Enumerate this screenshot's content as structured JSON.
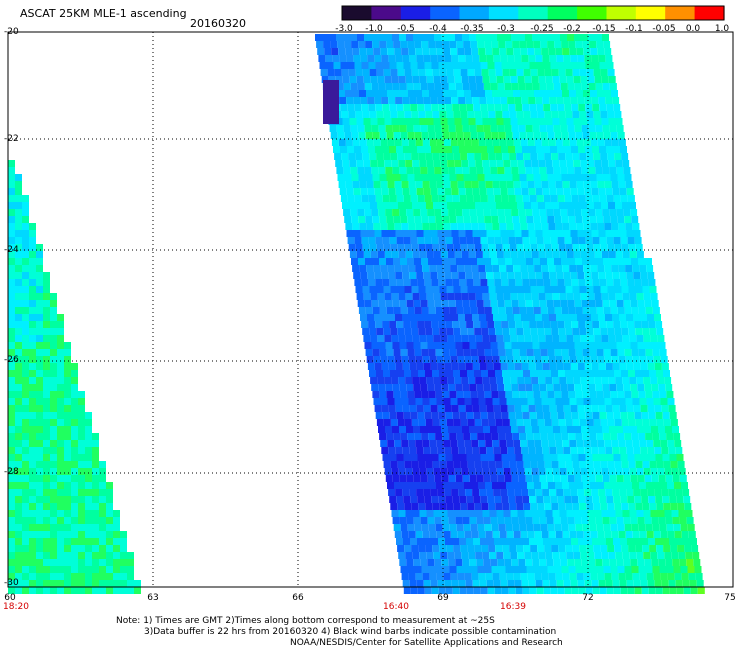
{
  "header": {
    "title": "ASCAT 25KM MLE-1 ascending",
    "date": "20160320"
  },
  "colorbar": {
    "labels": [
      "-3.0",
      "-1.0",
      "-0.5",
      "-0.4",
      "-0.35",
      "-0.3",
      "-0.25",
      "-0.2",
      "-0.15",
      "-0.1",
      "-0.05",
      "0.0",
      "1.0"
    ],
    "colors": [
      "#1a0b2e",
      "#4b0a8a",
      "#1a1ee6",
      "#0a64ff",
      "#00a8ff",
      "#00e0ff",
      "#00ffc0",
      "#00ff60",
      "#40ff00",
      "#c0ff00",
      "#ffff00",
      "#ff9000",
      "#ff0000"
    ]
  },
  "map": {
    "lat_labels": [
      "-20",
      "-22",
      "-24",
      "-26",
      "-28",
      "-30"
    ],
    "lon_labels": [
      "60",
      "63",
      "66",
      "69",
      "72",
      "75"
    ],
    "time_labels": [
      "18:20",
      "16:40",
      "16:39"
    ]
  },
  "notes": {
    "line1": "Note: 1) Times are GMT 2)Times along bottom correspond to measurement at ~25S",
    "line2": "3)Data buffer is 22 hrs from 20160320 4) Black wind barbs indicate possible contamination",
    "line3": "NOAA/NESDIS/Center for Satellite Applications and Research"
  }
}
